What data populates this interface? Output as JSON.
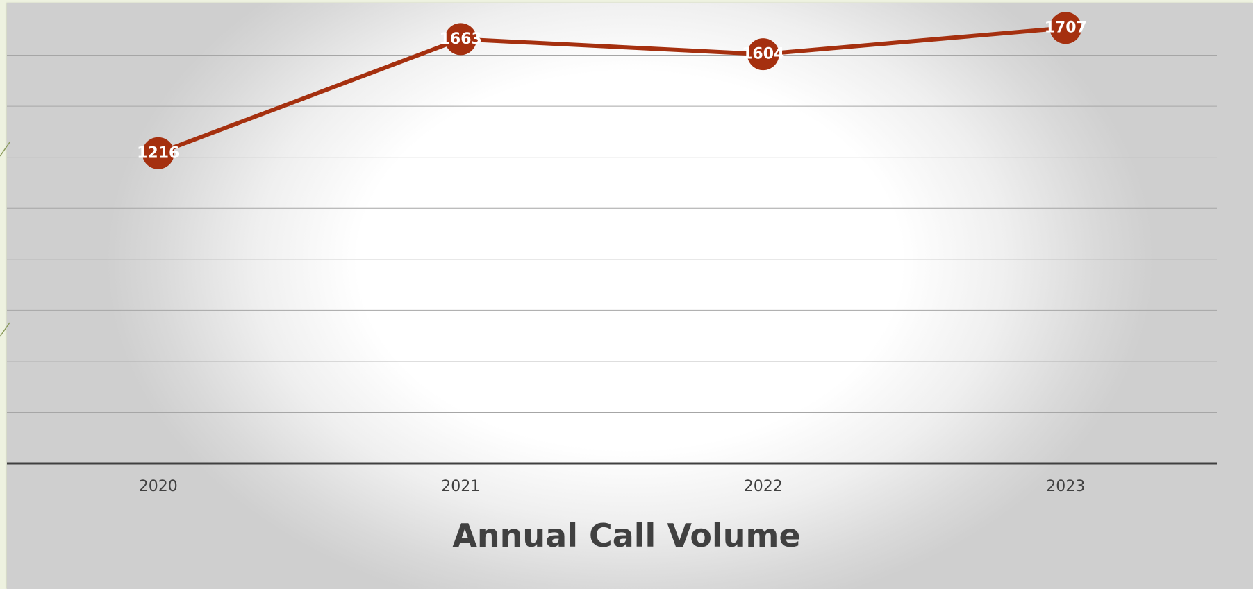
{
  "chart_data": {
    "type": "line",
    "title": "Annual Call Volume",
    "xlabel": "",
    "ylabel": "",
    "categories": [
      "2020",
      "2021",
      "2022",
      "2023"
    ],
    "series": [
      {
        "values": [
          1216,
          1663,
          1604,
          1707
        ],
        "color": "#a5300f"
      }
    ],
    "ylim": [
      0,
      1800
    ],
    "grid": true,
    "data_labels": true,
    "legend": "none"
  }
}
